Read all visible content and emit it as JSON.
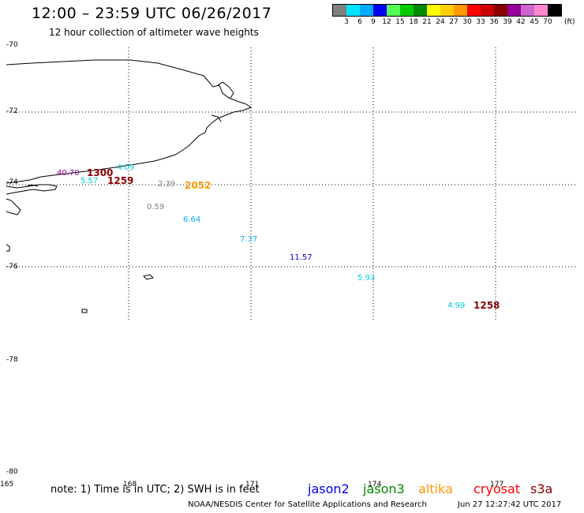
{
  "title": "12:00 – 23:59 UTC 06/26/2017",
  "subtitle": "12 hour collection of altimeter wave heights",
  "legend": {
    "colors": [
      "#808080",
      "#00e5ff",
      "#00aaff",
      "#0000ee",
      "#55ff55",
      "#00cc00",
      "#008800",
      "#ffff00",
      "#ffcc00",
      "#ff9900",
      "#ff0000",
      "#cc0000",
      "#880000",
      "#990099",
      "#cc66cc",
      "#ff88cc",
      "#000000"
    ],
    "labels": [
      "3",
      "6",
      "9",
      "12",
      "15",
      "18",
      "21",
      "24",
      "27",
      "30",
      "33",
      "36",
      "39",
      "42",
      "45",
      "70"
    ],
    "unit": "(ft)"
  },
  "lat_labels": [
    "-70",
    "-72",
    "-74",
    "-76",
    "-78",
    "-80"
  ],
  "lon_labels": [
    "165",
    "168",
    "171",
    "174",
    "177"
  ],
  "wave_heights": [
    {
      "value": "40.70",
      "color": "#990099"
    },
    {
      "value": "4.09",
      "color": "#00ccdd"
    },
    {
      "value": "5.57",
      "color": "#00ccdd"
    },
    {
      "value": "2.39",
      "color": "#808080"
    },
    {
      "value": "0.59",
      "color": "#808080"
    },
    {
      "value": "6.64",
      "color": "#00aaff"
    },
    {
      "value": "7.37",
      "color": "#00aaff"
    },
    {
      "value": "11.57",
      "color": "#0000cc"
    },
    {
      "value": "5.93",
      "color": "#00ccdd"
    },
    {
      "value": "4.99",
      "color": "#00ccdd"
    }
  ],
  "time_labels": [
    {
      "value": "1300",
      "color": "#880000"
    },
    {
      "value": "1259",
      "color": "#880000"
    },
    {
      "value": "2052",
      "color": "#ff9900"
    },
    {
      "value": "1258",
      "color": "#880000"
    }
  ],
  "note": "note: 1) Time is in UTC; 2) SWH is in feet",
  "satellites": [
    {
      "name": "jason2",
      "color": "#0000ee"
    },
    {
      "name": "jason3",
      "color": "#008800"
    },
    {
      "name": "altika",
      "color": "#ff9900"
    },
    {
      "name": "cryosat",
      "color": "#ff0000"
    },
    {
      "name": "s3a",
      "color": "#880000"
    }
  ],
  "footer": "NOAA/NESDIS Center for Satellite Applications and Research",
  "footer_date": "Jun 27 12:27:42 UTC 2017"
}
